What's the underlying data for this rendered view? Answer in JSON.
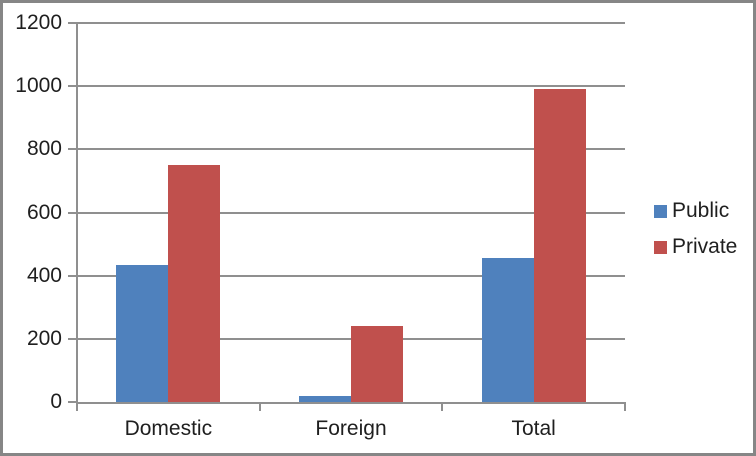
{
  "chart_data": {
    "type": "bar",
    "title": "",
    "categories": [
      "Domestic",
      "Foreign",
      "Total"
    ],
    "series": [
      {
        "name": "Public",
        "color": "#4F81BD",
        "values": [
          435,
          20,
          455
        ]
      },
      {
        "name": "Private",
        "color": "#C0504D",
        "values": [
          750,
          240,
          990
        ]
      }
    ],
    "xlabel": "",
    "ylabel": "",
    "ylim": [
      0,
      1200
    ],
    "ytick_interval": 200,
    "ytick_labels": [
      "0",
      "200",
      "400",
      "600",
      "800",
      "1000",
      "1200"
    ],
    "grid": "horizontal-major",
    "legend_position": "right-middle",
    "gap_width_percent": 150
  },
  "legend": {
    "items": [
      {
        "label": "Public",
        "swatch_color": "#4F81BD"
      },
      {
        "label": "Private",
        "swatch_color": "#C0504D"
      }
    ]
  },
  "colors": {
    "plot_background": "#FFFFFF",
    "gridline": "#8F8F8F",
    "axis": "#8F8F8F",
    "text": "#1F1F1F",
    "frame_border": "#868686",
    "series_public": "#4F81BD",
    "series_private": "#C0504D"
  }
}
